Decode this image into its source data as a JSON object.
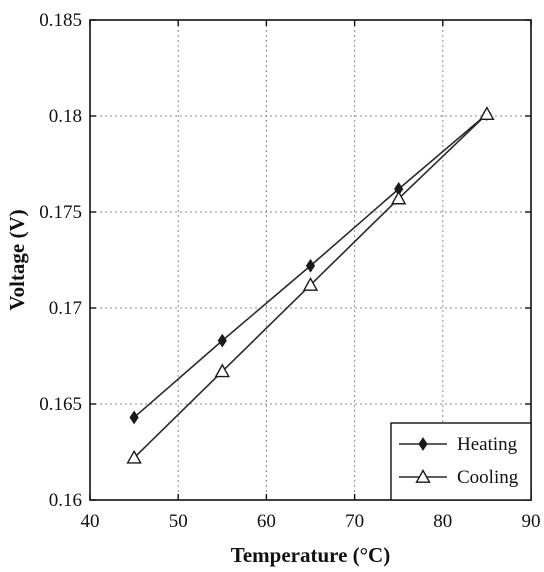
{
  "chart_data": {
    "type": "line",
    "title": "",
    "xlabel": "Temperature (°C)",
    "ylabel": "Voltage (V)",
    "xlim": [
      40,
      90
    ],
    "ylim": [
      0.16,
      0.185
    ],
    "xticks": [
      40,
      50,
      60,
      70,
      80,
      90
    ],
    "yticks": [
      0.16,
      0.165,
      0.17,
      0.175,
      0.18,
      0.185
    ],
    "ytick_labels": [
      "0.16",
      "0.165",
      "0.17",
      "0.175",
      "0.18",
      "0.185"
    ],
    "grid": true,
    "legend_position": "bottom-right",
    "series": [
      {
        "name": "Heating",
        "marker": "diamond",
        "x": [
          45,
          55,
          65,
          75,
          85
        ],
        "y": [
          0.1643,
          0.1683,
          0.1722,
          0.1762,
          0.1801
        ]
      },
      {
        "name": "Cooling",
        "marker": "triangle",
        "x": [
          45,
          55,
          65,
          75,
          85
        ],
        "y": [
          0.1622,
          0.1667,
          0.1712,
          0.1757,
          0.1801
        ]
      }
    ]
  },
  "colors": {
    "line": "#2a2a2a",
    "grid": "#8a8a8a"
  }
}
